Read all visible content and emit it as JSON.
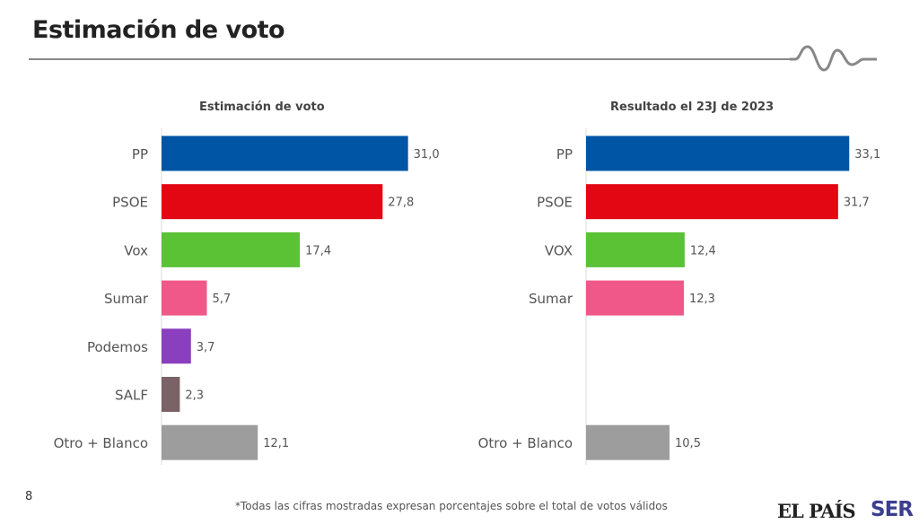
{
  "header": {
    "title": "Estimación de voto"
  },
  "chart_data": [
    {
      "type": "bar",
      "orientation": "horizontal",
      "title": "Estimación de voto",
      "categories": [
        "PP",
        "PSOE",
        "Vox",
        "Sumar",
        "Podemos",
        "SALF",
        "Otro + Blanco"
      ],
      "values": [
        31.0,
        27.8,
        17.4,
        5.7,
        3.7,
        2.3,
        12.1
      ],
      "labels": [
        "31,0",
        "27,8",
        "17,4",
        "5,7",
        "3,7",
        "2,3",
        "12,1"
      ],
      "colors": [
        "#0055A5",
        "#E30613",
        "#5BC236",
        "#F0588A",
        "#8A3FBF",
        "#7A6266",
        "#9D9D9D"
      ],
      "xlim": [
        0,
        35
      ]
    },
    {
      "type": "bar",
      "orientation": "horizontal",
      "title": "Resultado el 23J de 2023",
      "categories": [
        "PP",
        "PSOE",
        "VOX",
        "Sumar",
        "",
        "",
        "Otro + Blanco"
      ],
      "values": [
        33.1,
        31.7,
        12.4,
        12.3,
        null,
        null,
        10.5
      ],
      "labels": [
        "33,1",
        "31,7",
        "12,4",
        "12,3",
        "",
        "",
        "10,5"
      ],
      "colors": [
        "#0055A5",
        "#E30613",
        "#5BC236",
        "#F0588A",
        "#8A3FBF",
        "#7A6266",
        "#9D9D9D"
      ],
      "xlim": [
        0,
        35
      ]
    }
  ],
  "footer": {
    "page_number": "8",
    "note": "*Todas las cifras mostradas expresan porcentajes sobre el total de votos válidos",
    "logo_elpais": "EL PAÍS",
    "logo_ser": "SER"
  }
}
